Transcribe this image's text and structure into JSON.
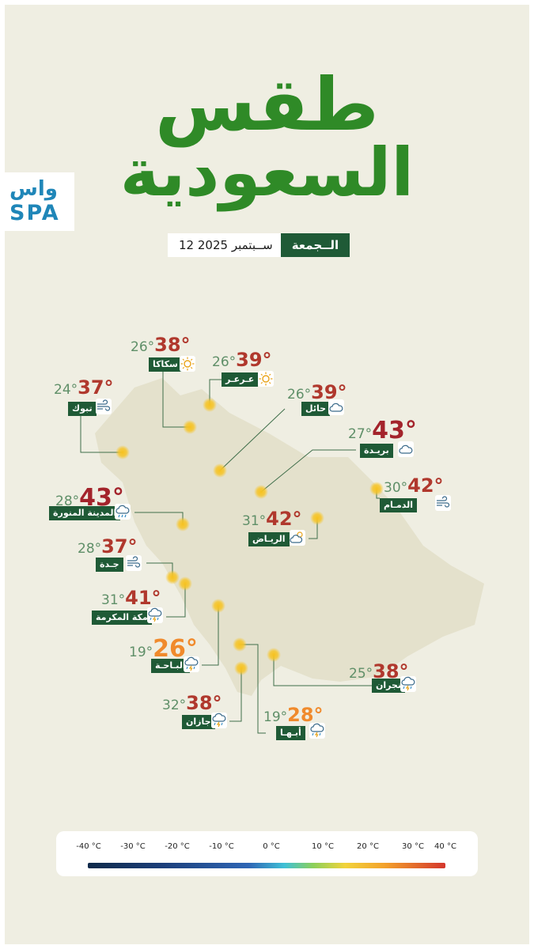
{
  "header": {
    "title_line1": "طقس",
    "title_line2": "السعودية",
    "logo_line1": "واس",
    "logo_line2": "SPA"
  },
  "date": {
    "day": "الــجمعة",
    "date_text": "12 ســبتمبر 2025"
  },
  "colors": {
    "title_green": "#2f8a27",
    "tag_green": "#1f5a36",
    "background": "#efeee2",
    "map_land": "#e4e1cc",
    "min_temp": "#5f8f68",
    "max_very_hot": "#a3232b",
    "max_hot": "#b0382d",
    "max_warm": "#f08a2c"
  },
  "cities": [
    {
      "name": "سكاكا",
      "min": "26°",
      "max": "38°",
      "icon": "sun-icon",
      "heat": "hot"
    },
    {
      "name": "عـرعـر",
      "min": "26°",
      "max": "39°",
      "icon": "sun-icon",
      "heat": "hot"
    },
    {
      "name": "تبوك",
      "min": "24°",
      "max": "37°",
      "icon": "wind-icon",
      "heat": "hot"
    },
    {
      "name": "حائل",
      "min": "26°",
      "max": "39°",
      "icon": "cloud-icon",
      "heat": "hot"
    },
    {
      "name": "بريـدة",
      "min": "27°",
      "max": "43°",
      "icon": "cloud-icon",
      "heat": "very-hot"
    },
    {
      "name": "الدمـام",
      "min": "30°",
      "max": "42°",
      "icon": "wind-icon",
      "heat": "hot"
    },
    {
      "name": "المدينة المنورة",
      "min": "28°",
      "max": "43°",
      "icon": "cloud-rain-icon",
      "heat": "very-hot"
    },
    {
      "name": "الريـاض",
      "min": "31°",
      "max": "42°",
      "icon": "partly-cloudy-icon",
      "heat": "hot"
    },
    {
      "name": "جـدة",
      "min": "28°",
      "max": "37°",
      "icon": "wind-icon",
      "heat": "hot"
    },
    {
      "name": "مكة المكرمة",
      "min": "31°",
      "max": "41°",
      "icon": "storm-icon",
      "heat": "hot"
    },
    {
      "name": "البـاحـة",
      "min": "19°",
      "max": "26°",
      "icon": "storm-icon",
      "heat": "warm"
    },
    {
      "name": "نجران",
      "min": "25°",
      "max": "38°",
      "icon": "storm-icon",
      "heat": "hot"
    },
    {
      "name": "جازان",
      "min": "32°",
      "max": "38°",
      "icon": "storm-icon",
      "heat": "hot"
    },
    {
      "name": "أبـهـا",
      "min": "19°",
      "max": "28°",
      "icon": "storm-icon",
      "heat": "warm"
    }
  ],
  "temperature_scale": {
    "labels": [
      "-40 °C",
      "-30 °C",
      "-20 °C",
      "-10 °C",
      "0 °C",
      "10 °C",
      "20 °C",
      "30 °C",
      "40 °C"
    ]
  }
}
